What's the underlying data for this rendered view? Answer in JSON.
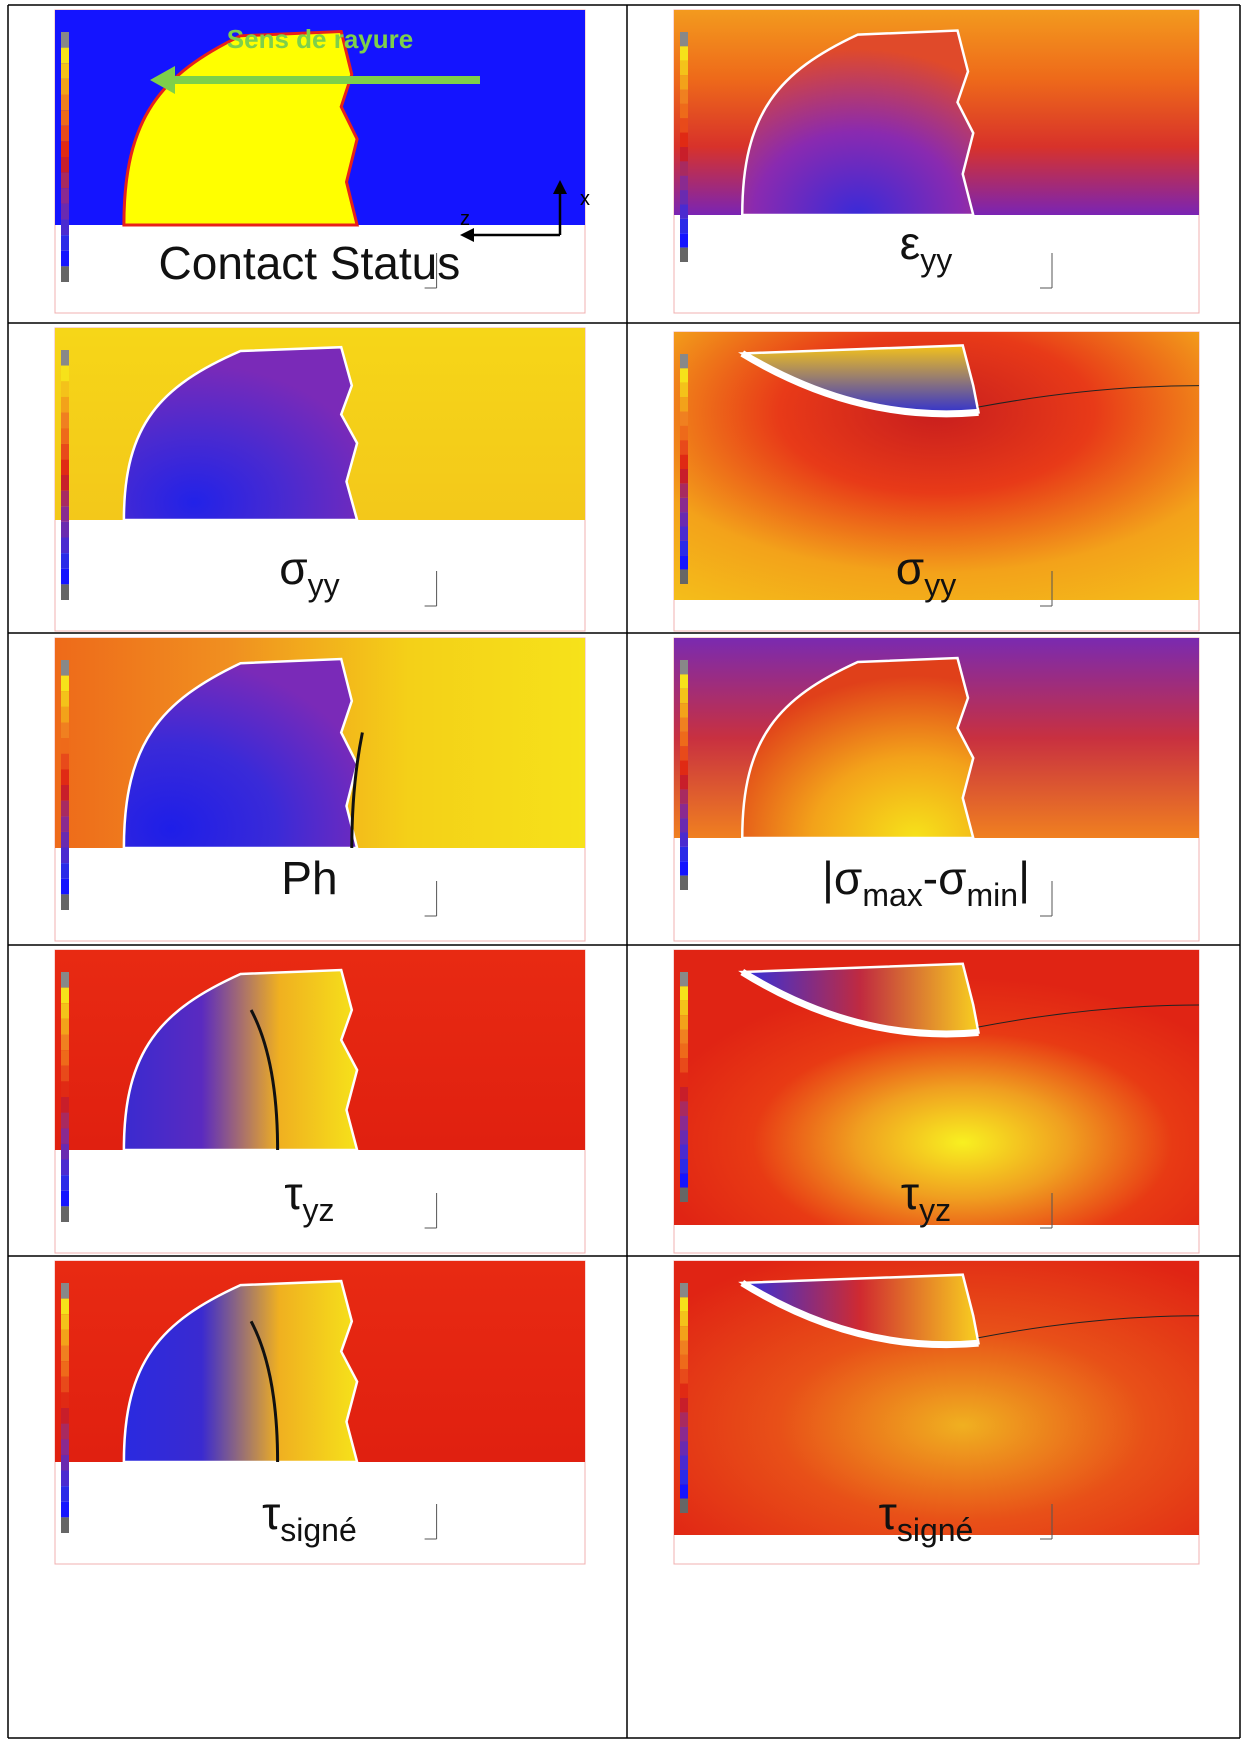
{
  "figure": {
    "annotation": "Sens de rayure",
    "axis_x": "x",
    "axis_z": "z",
    "panels": [
      {
        "label": [
          {
            "text": "Contact Status"
          }
        ]
      },
      {
        "label": [
          {
            "text": "ε"
          },
          {
            "sub": "yy"
          }
        ]
      },
      {
        "label": [
          {
            "text": "σ"
          },
          {
            "sub": "yy"
          }
        ]
      },
      {
        "label": [
          {
            "text": "σ"
          },
          {
            "sub": "yy"
          }
        ]
      },
      {
        "label": [
          {
            "text": "Ph"
          }
        ]
      },
      {
        "label": [
          {
            "text": "|σ"
          },
          {
            "sub": "max"
          },
          {
            "text": "-σ"
          },
          {
            "sub": "min"
          },
          {
            "text": "|"
          }
        ]
      },
      {
        "label": [
          {
            "text": "τ"
          },
          {
            "sub": "yz"
          }
        ]
      },
      {
        "label": [
          {
            "text": "τ"
          },
          {
            "sub": "yz"
          }
        ]
      },
      {
        "label": [
          {
            "text": "τ"
          },
          {
            "sub": "signé"
          }
        ]
      },
      {
        "label": [
          {
            "text": "τ"
          },
          {
            "sub": "signé"
          }
        ]
      }
    ]
  }
}
